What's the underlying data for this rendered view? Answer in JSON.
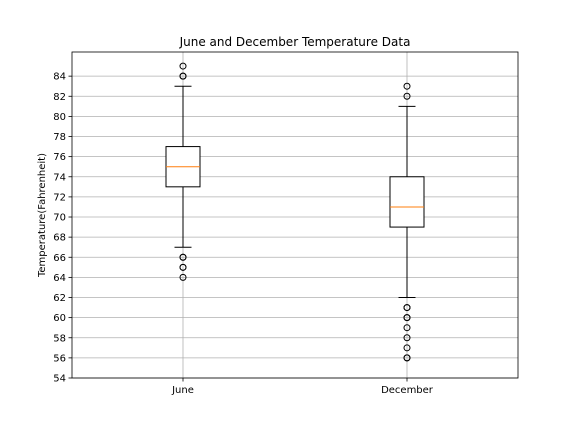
{
  "chart_data": {
    "type": "box",
    "title": "June and December Temperature Data",
    "xlabel": "",
    "ylabel": "Temperature(Fahrenheit)",
    "categories": [
      "June",
      "December"
    ],
    "ylim": [
      54,
      86.4
    ],
    "yticks": [
      54,
      56,
      58,
      60,
      62,
      64,
      66,
      68,
      70,
      72,
      74,
      76,
      78,
      80,
      82,
      84
    ],
    "grid": true,
    "boxes": [
      {
        "name": "June",
        "whisker_low": 67,
        "q1": 73,
        "median": 75,
        "q3": 77,
        "whisker_high": 83,
        "fliers": [
          64,
          65,
          65,
          66,
          66,
          84,
          84,
          85
        ]
      },
      {
        "name": "December",
        "whisker_low": 62,
        "q1": 69,
        "median": 71,
        "q3": 74,
        "whisker_high": 81,
        "fliers": [
          56,
          56,
          57,
          58,
          59,
          60,
          60,
          61,
          61,
          82,
          83
        ]
      }
    ],
    "colors": {
      "median": "#ff7f0e",
      "box": "#000000",
      "grid": "#b0b0b0"
    }
  }
}
